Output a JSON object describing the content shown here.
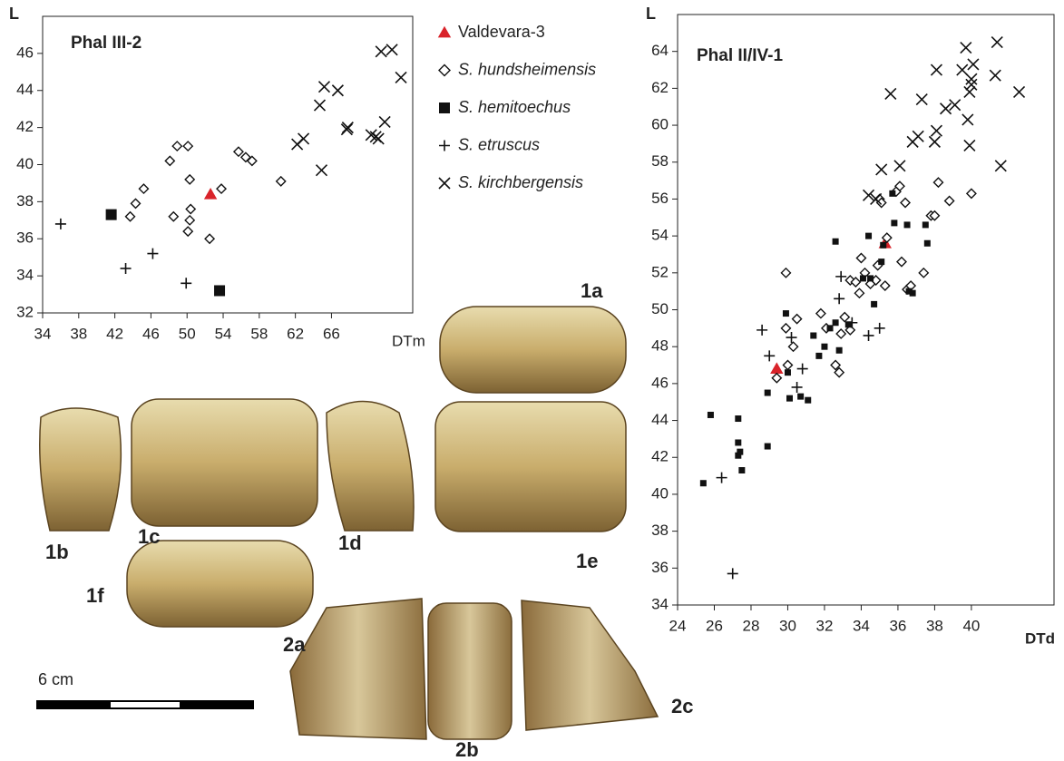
{
  "chart_data": [
    {
      "type": "scatter",
      "title": "Phal III-2",
      "x_label": "DTm",
      "y_label": "L",
      "xlim": [
        34,
        75
      ],
      "ylim": [
        32,
        48
      ],
      "xticks": [
        34,
        38,
        42,
        46,
        50,
        54,
        58,
        62,
        66
      ],
      "yticks": [
        32,
        34,
        36,
        38,
        40,
        42,
        44,
        46
      ],
      "series": [
        {
          "name": "Valdevara-3",
          "marker": "triangle",
          "color": "#d9232a",
          "x": [
            52.6
          ],
          "values": [
            38.4
          ]
        },
        {
          "name": "S. hundsheimensis",
          "marker": "diamond",
          "color": "#111111",
          "x": [
            43.7,
            44.3,
            45.2,
            48.1,
            48.9,
            50.1,
            50.3,
            48.5,
            50.4,
            50.3,
            50.1,
            52.5,
            53.8,
            55.7,
            56.5,
            57.2,
            60.4
          ],
          "values": [
            37.2,
            37.9,
            38.7,
            40.2,
            41.0,
            41.0,
            39.2,
            37.2,
            37.6,
            37.0,
            36.4,
            36.0,
            38.7,
            40.7,
            40.4,
            40.2,
            39.1
          ]
        },
        {
          "name": "S. hemitoechus",
          "marker": "square",
          "color": "#111111",
          "x": [
            41.6,
            53.6
          ],
          "values": [
            37.3,
            33.2
          ]
        },
        {
          "name": "S. etruscus",
          "marker": "plus",
          "color": "#111111",
          "x": [
            36.0,
            43.2,
            46.2,
            49.9
          ],
          "values": [
            36.8,
            34.4,
            35.2,
            33.6
          ]
        },
        {
          "name": "S. kirchbergensis",
          "marker": "x",
          "color": "#111111",
          "x": [
            62.2,
            62.9,
            64.7,
            65.2,
            66.7,
            64.9,
            67.7,
            67.8,
            70.4,
            70.9,
            71.2,
            71.9,
            71.5,
            72.7,
            73.7
          ],
          "values": [
            41.1,
            41.4,
            43.2,
            44.2,
            44.0,
            39.7,
            41.9,
            42.0,
            41.6,
            41.5,
            41.4,
            42.3,
            46.1,
            46.2,
            44.7
          ]
        }
      ]
    },
    {
      "type": "scatter",
      "title": "Phal II/IV-1",
      "x_label": "DTd",
      "y_label": "L",
      "xlim": [
        24,
        44.5
      ],
      "ylim": [
        34,
        66
      ],
      "xticks": [
        24,
        26,
        28,
        30,
        32,
        34,
        36,
        38,
        40
      ],
      "yticks": [
        34,
        36,
        38,
        40,
        42,
        44,
        46,
        48,
        50,
        52,
        54,
        56,
        58,
        60,
        62,
        64
      ],
      "series": [
        {
          "marker": "triangle",
          "color": "#d9232a",
          "x": [
            29.4,
            35.3
          ],
          "values": [
            46.8,
            53.6
          ]
        },
        {
          "marker": "diamond",
          "color": "#111111",
          "x": [
            29.9,
            29.4,
            29.9,
            30.0,
            30.3,
            30.5,
            31.8,
            32.1,
            32.6,
            32.8,
            32.9,
            33.1,
            33.4,
            33.4,
            33.7,
            33.9,
            34.0,
            34.2,
            34.5,
            34.8,
            34.9,
            35.0,
            35.1,
            35.3,
            35.4,
            35.9,
            36.1,
            36.2,
            36.4,
            36.5,
            36.7,
            37.4,
            37.8,
            38.0,
            38.2,
            38.8,
            40.0
          ],
          "values": [
            52.0,
            46.3,
            49.0,
            47.0,
            48.0,
            49.5,
            49.8,
            49.0,
            47.0,
            46.6,
            48.7,
            49.6,
            48.9,
            51.6,
            51.5,
            50.9,
            52.8,
            52.0,
            51.4,
            51.6,
            52.4,
            56.0,
            55.8,
            51.3,
            53.9,
            56.4,
            56.7,
            52.6,
            55.8,
            51.1,
            51.3,
            52.0,
            55.1,
            55.1,
            56.9,
            55.9,
            56.3
          ]
        },
        {
          "marker": "square",
          "color": "#111111",
          "x": [
            25.4,
            25.8,
            27.3,
            27.3,
            27.3,
            27.4,
            27.5,
            28.9,
            28.9,
            29.9,
            30.0,
            30.1,
            30.7,
            31.1,
            31.4,
            31.7,
            32.0,
            32.3,
            32.6,
            32.6,
            32.8,
            33.3,
            34.1,
            34.4,
            34.5,
            34.7,
            35.1,
            35.2,
            35.7,
            35.8,
            36.5,
            36.6,
            36.8,
            37.5,
            37.6
          ],
          "values": [
            40.6,
            44.3,
            44.1,
            42.8,
            42.1,
            42.3,
            41.3,
            42.6,
            45.5,
            49.8,
            46.6,
            45.2,
            45.3,
            45.1,
            48.6,
            47.5,
            48.0,
            49.0,
            53.7,
            49.3,
            47.8,
            49.2,
            51.7,
            54.0,
            51.7,
            50.3,
            52.6,
            53.5,
            56.3,
            54.7,
            54.6,
            51.0,
            50.9,
            54.6,
            53.6
          ]
        },
        {
          "marker": "plus",
          "color": "#111111",
          "x": [
            27.0,
            26.4,
            28.6,
            29.0,
            30.2,
            30.5,
            30.8,
            32.8,
            32.9,
            34.4,
            35.0,
            33.5
          ],
          "values": [
            35.7,
            40.9,
            48.9,
            47.5,
            48.5,
            45.8,
            46.8,
            50.6,
            51.8,
            48.6,
            49.0,
            49.3
          ]
        },
        {
          "marker": "x",
          "color": "#111111",
          "x": [
            34.4,
            34.8,
            35.1,
            35.6,
            36.1,
            36.8,
            37.1,
            37.3,
            38.0,
            38.1,
            38.1,
            38.6,
            39.1,
            39.5,
            39.7,
            39.8,
            39.9,
            40.0,
            40.0,
            39.9,
            40.1,
            41.3,
            41.4,
            41.6,
            42.6
          ],
          "values": [
            56.2,
            56.0,
            57.6,
            61.7,
            57.8,
            59.1,
            59.4,
            61.4,
            59.1,
            59.7,
            63.0,
            60.9,
            61.1,
            63.0,
            64.2,
            60.3,
            61.8,
            62.2,
            62.5,
            58.9,
            63.3,
            62.7,
            64.5,
            57.8,
            61.8
          ]
        }
      ]
    }
  ],
  "figure_labels": [
    "1a",
    "1b",
    "1c",
    "1d",
    "1e",
    "1f",
    "2a",
    "2b",
    "2c"
  ],
  "scale_bar": "6 cm"
}
